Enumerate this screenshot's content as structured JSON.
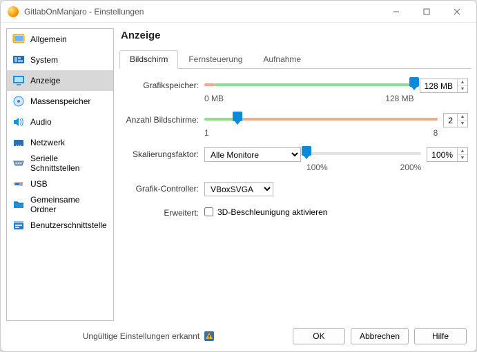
{
  "window": {
    "title": "GitlabOnManjaro - Einstellungen"
  },
  "sidebar": {
    "items": [
      {
        "label": "Allgemein",
        "icon": "general"
      },
      {
        "label": "System",
        "icon": "system"
      },
      {
        "label": "Anzeige",
        "icon": "display",
        "selected": true
      },
      {
        "label": "Massenspeicher",
        "icon": "storage"
      },
      {
        "label": "Audio",
        "icon": "audio"
      },
      {
        "label": "Netzwerk",
        "icon": "network"
      },
      {
        "label": "Serielle Schnittstellen",
        "icon": "serial"
      },
      {
        "label": "USB",
        "icon": "usb"
      },
      {
        "label": "Gemeinsame Ordner",
        "icon": "shared"
      },
      {
        "label": "Benutzerschnittstelle",
        "icon": "ui"
      }
    ]
  },
  "heading": "Anzeige",
  "tabs": [
    {
      "label": "Bildschirm",
      "active": true
    },
    {
      "label": "Fernsteuerung",
      "active": false
    },
    {
      "label": "Aufnahme",
      "active": false
    }
  ],
  "videoMemory": {
    "label": "Grafikspeicher:",
    "value_display": "128 MB",
    "min_label": "0 MB",
    "max_label": "128 MB",
    "min": 0,
    "max": 128,
    "value": 128,
    "recommended_start_pct": 5,
    "recommended_end_pct": 100,
    "warn_end_pct": 5,
    "colors": {
      "warn": "#f6a88e",
      "ok": "#8de08d",
      "thumb": "#0d89d8"
    }
  },
  "monitorCount": {
    "label": "Anzahl Bildschirme:",
    "value_display": "2",
    "min_label": "1",
    "max_label": "8",
    "min": 1,
    "max": 8,
    "value": 2,
    "ok_end_pct": 15,
    "colors": {
      "warn": "#f6a88e",
      "ok": "#8de08d",
      "thumb": "#0d89d8"
    }
  },
  "scaleFactor": {
    "label": "Skalierungsfaktor:",
    "monitor_select": "Alle Monitore",
    "value_display": "100%",
    "min_label": "100%",
    "max_label": "200%",
    "min": 100,
    "max": 200,
    "value": 100,
    "colors": {
      "thumb": "#0d89d8"
    }
  },
  "graphicsController": {
    "label": "Grafik-Controller:",
    "value": "VBoxSVGA"
  },
  "extended": {
    "label": "Erweitert:",
    "checkbox_label": "3D-Beschleunigung aktivieren",
    "checked": false
  },
  "footer": {
    "status_text": "Ungültige Einstellungen erkannt",
    "ok": "OK",
    "cancel": "Abbrechen",
    "help": "Hilfe"
  }
}
